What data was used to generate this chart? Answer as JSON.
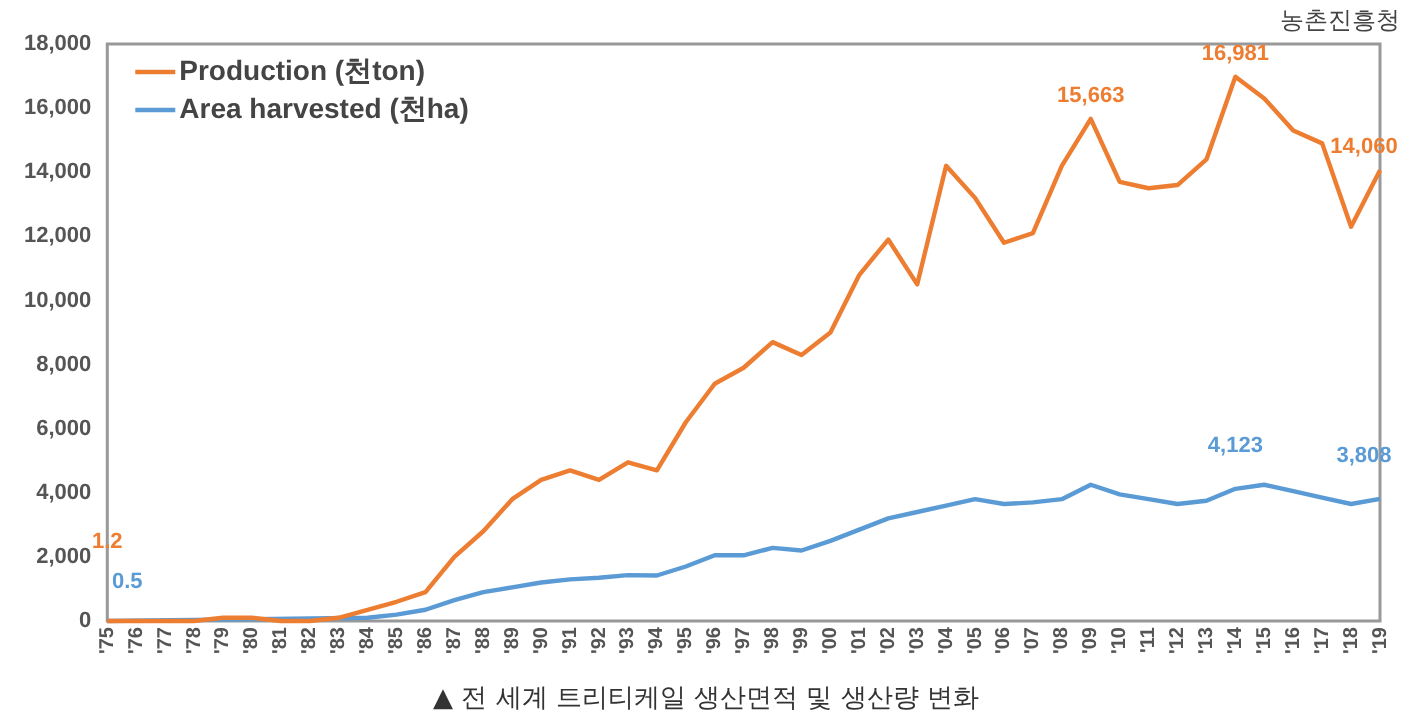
{
  "chart_data": {
    "type": "line",
    "legend": "top left",
    "grid": false,
    "marker": "none",
    "line_style": "solid",
    "categories": [
      "'75",
      "'76",
      "'77",
      "'78",
      "'79",
      "'80",
      "'81",
      "'82",
      "'83",
      "'84",
      "'85",
      "'86",
      "'87",
      "'88",
      "'89",
      "'90",
      "'91",
      "'92",
      "'93",
      "'94",
      "'95",
      "'96",
      "'97",
      "'98",
      "'99",
      "'00",
      "'01",
      "'02",
      "'03",
      "'04",
      "'05",
      "'06",
      "'07",
      "'08",
      "'09",
      "'10",
      "'11",
      "'12",
      "'13",
      "'14",
      "'15",
      "'16",
      "'17",
      "'18",
      "'19"
    ],
    "ylim": [
      0,
      18000
    ],
    "yticks": [
      {
        "value": 0,
        "label": "0"
      },
      {
        "value": 2000,
        "label": "2,000"
      },
      {
        "value": 4000,
        "label": "4,000"
      },
      {
        "value": 6000,
        "label": "6,000"
      },
      {
        "value": 8000,
        "label": "8,000"
      },
      {
        "value": 10000,
        "label": "10,000"
      },
      {
        "value": 12000,
        "label": "12,000"
      },
      {
        "value": 14000,
        "label": "14,000"
      },
      {
        "value": 16000,
        "label": "16,000"
      },
      {
        "value": 18000,
        "label": "18,000"
      }
    ],
    "series": [
      {
        "name": "Production (천ton)",
        "color": "#ed7d31",
        "values": [
          1.2,
          0,
          0,
          0,
          100,
          100,
          0,
          0,
          100,
          350,
          600,
          900,
          2000,
          2800,
          3800,
          4400,
          4700,
          4400,
          4950,
          4700,
          6200,
          7400,
          7900,
          8700,
          8300,
          9000,
          10800,
          11900,
          10500,
          14200,
          13200,
          11800,
          12100,
          14200,
          15663,
          13700,
          13500,
          13600,
          14400,
          16981,
          16300,
          15300,
          14900,
          12300,
          14060
        ],
        "value_labels": [
          "1.2",
          null,
          null,
          null,
          null,
          null,
          null,
          null,
          null,
          null,
          null,
          null,
          null,
          null,
          null,
          null,
          null,
          null,
          null,
          null,
          null,
          null,
          null,
          null,
          null,
          null,
          null,
          null,
          null,
          null,
          null,
          null,
          null,
          null,
          "15,663",
          null,
          null,
          null,
          null,
          "16,981",
          null,
          null,
          null,
          null,
          "14,060"
        ]
      },
      {
        "name": "Area harvested (천ha)",
        "color": "#5b9bd5",
        "values": [
          0.5,
          null,
          null,
          null,
          null,
          null,
          null,
          null,
          null,
          100,
          200,
          350,
          650,
          900,
          1050,
          1200,
          1300,
          1350,
          1430,
          1420,
          1700,
          2050,
          2050,
          2280,
          2200,
          2500,
          2850,
          3200,
          3400,
          3600,
          3800,
          3650,
          3700,
          3800,
          4250,
          3950,
          3800,
          3650,
          3750,
          4123,
          4250,
          4050,
          3850,
          3650,
          3808
        ],
        "value_labels": [
          "0.5",
          null,
          null,
          null,
          null,
          null,
          null,
          null,
          null,
          null,
          null,
          null,
          null,
          null,
          null,
          null,
          null,
          null,
          null,
          null,
          null,
          null,
          null,
          null,
          null,
          null,
          null,
          null,
          null,
          null,
          null,
          null,
          null,
          null,
          null,
          null,
          null,
          null,
          null,
          "4,123",
          null,
          null,
          null,
          null,
          "3,808"
        ]
      }
    ],
    "annotations": [
      "농촌진흥청",
      "▲ 전 세계 트리티케일 생산면적 및 생산량 변화"
    ]
  }
}
